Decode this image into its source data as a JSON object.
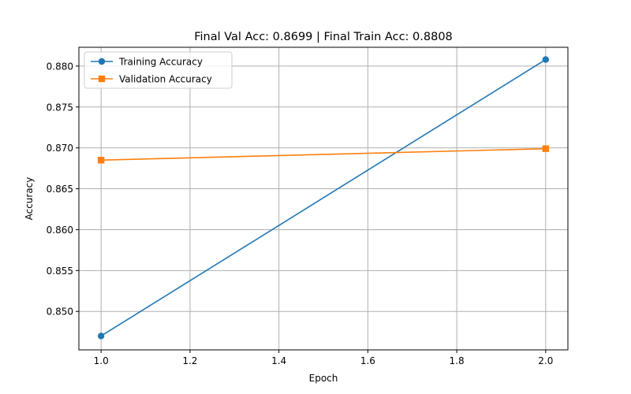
{
  "chart_data": {
    "type": "line",
    "title": "Final Val Acc: 0.8699 | Final Train Acc: 0.8808",
    "xlabel": "Epoch",
    "ylabel": "Accuracy",
    "xlim": [
      0.95,
      2.05
    ],
    "ylim": [
      0.8453,
      0.8823
    ],
    "x_ticks": [
      1.0,
      1.2,
      1.4,
      1.6,
      1.8,
      2.0
    ],
    "x_tick_labels": [
      "1.0",
      "1.2",
      "1.4",
      "1.6",
      "1.8",
      "2.0"
    ],
    "y_ticks": [
      0.85,
      0.855,
      0.86,
      0.865,
      0.87,
      0.875,
      0.88
    ],
    "y_tick_labels": [
      "0.850",
      "0.855",
      "0.860",
      "0.865",
      "0.870",
      "0.875",
      "0.880"
    ],
    "grid": true,
    "legend_position": "top-left",
    "x": [
      1.0,
      2.0
    ],
    "series": [
      {
        "name": "Training Accuracy",
        "values": [
          0.847,
          0.8808
        ],
        "color": "#1f77b4",
        "marker": "circle"
      },
      {
        "name": "Validation Accuracy",
        "values": [
          0.8685,
          0.8699
        ],
        "color": "#ff7f0e",
        "marker": "square"
      }
    ]
  }
}
